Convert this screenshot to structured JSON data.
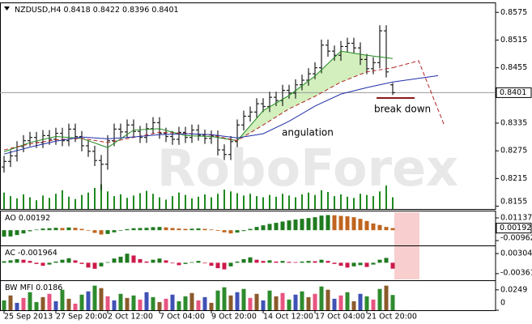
{
  "chart_data": [
    {
      "type": "ohlc",
      "title": "NZDUSD,H4",
      "watermark": "RoboForex",
      "color": "#1e1e1e",
      "value_box": true,
      "xlim": [
        -0.625,
        75.875
      ],
      "ylim": [
        0.8149,
        0.8593
      ],
      "yticks": [
        0.8575,
        0.8515,
        0.8455,
        0.8335,
        0.8275,
        0.8215,
        0.8155
      ],
      "open": [
        0.824,
        0.8252,
        0.8264,
        0.8284,
        0.8297,
        0.8304,
        0.8293,
        0.8308,
        0.83,
        0.8313,
        0.8297,
        0.8322,
        0.8306,
        0.8286,
        0.8274,
        0.8254,
        0.8246,
        0.8297,
        0.8322,
        0.8316,
        0.8331,
        0.8317,
        0.8304,
        0.8323,
        0.8336,
        0.8313,
        0.8306,
        0.83,
        0.8315,
        0.8304,
        0.832,
        0.8309,
        0.8302,
        0.8307,
        0.8277,
        0.8267,
        0.8295,
        0.8331,
        0.835,
        0.8359,
        0.8377,
        0.8371,
        0.8391,
        0.8384,
        0.8406,
        0.84,
        0.8418,
        0.8428,
        0.8442,
        0.8455,
        0.8504,
        0.8491,
        0.8482,
        0.8501,
        0.8508,
        0.8498,
        0.8473,
        0.8453,
        0.8466,
        0.8535,
        0.8418
      ],
      "high": [
        0.8264,
        0.8276,
        0.8296,
        0.8309,
        0.8316,
        0.8316,
        0.832,
        0.832,
        0.8325,
        0.8325,
        0.8334,
        0.8334,
        0.8318,
        0.8298,
        0.8286,
        0.8266,
        0.8309,
        0.8334,
        0.8334,
        0.8343,
        0.8343,
        0.8329,
        0.8335,
        0.8348,
        0.8348,
        0.8325,
        0.8318,
        0.8327,
        0.8327,
        0.8332,
        0.8332,
        0.8321,
        0.8319,
        0.8319,
        0.8289,
        0.8307,
        0.8343,
        0.8362,
        0.8371,
        0.8389,
        0.8389,
        0.8403,
        0.8403,
        0.8418,
        0.8418,
        0.843,
        0.844,
        0.8454,
        0.8467,
        0.8516,
        0.8516,
        0.8503,
        0.8513,
        0.852,
        0.852,
        0.851,
        0.8485,
        0.8478,
        0.8547,
        0.8547,
        0.8422
      ],
      "low": [
        0.8228,
        0.824,
        0.8252,
        0.8272,
        0.8285,
        0.8281,
        0.8281,
        0.8288,
        0.8288,
        0.8285,
        0.8285,
        0.8294,
        0.8274,
        0.8262,
        0.8242,
        0.819,
        0.8234,
        0.8285,
        0.8304,
        0.8304,
        0.8305,
        0.8292,
        0.8292,
        0.8311,
        0.8301,
        0.8294,
        0.8288,
        0.8288,
        0.8292,
        0.8292,
        0.8297,
        0.829,
        0.829,
        0.8265,
        0.8255,
        0.8255,
        0.8283,
        0.8319,
        0.8338,
        0.8347,
        0.8359,
        0.8359,
        0.8372,
        0.8372,
        0.8388,
        0.8388,
        0.8406,
        0.8416,
        0.843,
        0.8443,
        0.8479,
        0.847,
        0.847,
        0.8489,
        0.8486,
        0.8461,
        0.8441,
        0.8441,
        0.8454,
        0.8434,
        0.8396
      ],
      "close": [
        0.8252,
        0.8264,
        0.8284,
        0.8297,
        0.8304,
        0.8293,
        0.8308,
        0.83,
        0.8313,
        0.8297,
        0.8322,
        0.8306,
        0.8286,
        0.8274,
        0.8254,
        0.8246,
        0.8297,
        0.8322,
        0.8316,
        0.8331,
        0.8317,
        0.8304,
        0.8323,
        0.8336,
        0.8313,
        0.8306,
        0.83,
        0.8315,
        0.8304,
        0.832,
        0.8309,
        0.8302,
        0.8307,
        0.8277,
        0.8267,
        0.8295,
        0.8331,
        0.835,
        0.8359,
        0.8377,
        0.8371,
        0.8391,
        0.8384,
        0.8406,
        0.84,
        0.8418,
        0.8428,
        0.8442,
        0.8455,
        0.8504,
        0.8491,
        0.8482,
        0.8501,
        0.8508,
        0.8498,
        0.8473,
        0.8453,
        0.8466,
        0.8535,
        0.8446,
        0.8401
      ],
      "volume": [
        2800,
        2200,
        1800,
        2500,
        2000,
        1500,
        2300,
        1900,
        2600,
        3200,
        2100,
        1700,
        2400,
        2800,
        3600,
        4200,
        3000,
        2200,
        2500,
        1900,
        2300,
        2700,
        3100,
        2600,
        2000,
        1600,
        2200,
        2800,
        2400,
        1800,
        2100,
        2500,
        2000,
        2600,
        3300,
        3000,
        2700,
        2300,
        2600,
        2200,
        2000,
        2400,
        2100,
        2600,
        2300,
        2000,
        2500,
        2800,
        2400,
        3200,
        2900,
        2200,
        2500,
        2100,
        1900,
        2600,
        2400,
        2200,
        3000,
        4000,
        2000
      ],
      "volume_color": "#1f8a1f",
      "vlim": [
        0,
        35000
      ],
      "price_line_color": "#9a9a9a",
      "lines": [
        {
          "color": "#1f8a1f",
          "dash": false,
          "x": [
            0,
            4,
            8,
            12,
            16,
            20,
            24,
            28,
            32,
            36,
            40,
            44,
            48,
            52,
            56,
            60
          ],
          "values": [
            0.8273,
            0.8293,
            0.8306,
            0.8302,
            0.8282,
            0.832,
            0.8323,
            0.8308,
            0.8306,
            0.8297,
            0.8362,
            0.8395,
            0.8437,
            0.8491,
            0.8482,
            0.8475
          ]
        },
        {
          "color": "#b22222",
          "dash": true,
          "x": [
            0,
            4,
            8,
            12,
            16,
            20,
            24,
            28,
            32,
            36,
            40,
            44,
            48,
            52,
            56,
            60
          ],
          "values": [
            0.8277,
            0.829,
            0.8299,
            0.8302,
            0.8293,
            0.8304,
            0.8315,
            0.8313,
            0.8309,
            0.8297,
            0.8331,
            0.8366,
            0.8393,
            0.8424,
            0.8446,
            0.8455
          ]
        },
        {
          "color": "#1f2fa8",
          "dash": false,
          "x": [
            0,
            4,
            8,
            12,
            16,
            20,
            24,
            28,
            32,
            36,
            40,
            44,
            48,
            52,
            56,
            60,
            64,
            67
          ],
          "values": [
            0.8268,
            0.8283,
            0.8296,
            0.8305,
            0.8301,
            0.8305,
            0.831,
            0.8312,
            0.831,
            0.8303,
            0.8312,
            0.8339,
            0.8372,
            0.8398,
            0.8412,
            0.8424,
            0.8432,
            0.8438
          ]
        },
        {
          "color": "#b22222",
          "dash": true,
          "x": [
            60,
            64,
            68
          ],
          "values": [
            0.8455,
            0.847,
            0.8329
          ]
        }
      ],
      "annotations": [
        {
          "text": "angulation",
          "color": "#2e8b57",
          "fill": "#d3efbd"
        },
        {
          "text": "break down",
          "color": "#b22222"
        }
      ]
    },
    {
      "type": "bar",
      "name": "AO",
      "value_box": true,
      "xlim": [
        -0.625,
        75.875
      ],
      "ylim": [
        -0.0141,
        0.0166
      ],
      "yticks": [
        0.01137,
        -0.00962
      ],
      "up_color": "#1f7a1f",
      "down_color": "#c0641e",
      "values": [
        -0.006,
        -0.0058,
        -0.0045,
        -0.003,
        -0.001,
        0.0005,
        0.0015,
        0.0018,
        0.0022,
        0.002,
        0.0025,
        0.0022,
        0.0012,
        -0.0005,
        -0.0025,
        -0.004,
        -0.0035,
        -0.002,
        -0.0005,
        0.001,
        0.0018,
        0.002,
        0.0022,
        0.0028,
        0.003,
        0.0026,
        0.002,
        0.0015,
        0.0012,
        0.0014,
        0.0016,
        0.0012,
        0.0006,
        -0.0006,
        -0.002,
        -0.003,
        -0.0022,
        -0.0008,
        0.0012,
        0.003,
        0.0045,
        0.0058,
        0.0068,
        0.008,
        0.009,
        0.0098,
        0.0105,
        0.0112,
        0.012,
        0.0135,
        0.014,
        0.0138,
        0.0132,
        0.0128,
        0.012,
        0.0105,
        0.0085,
        0.0062,
        0.0048,
        0.003,
        0.00192
      ]
    },
    {
      "type": "bar",
      "name": "AC",
      "value_box": false,
      "xlim": [
        -0.625,
        75.875
      ],
      "ylim": [
        -0.0058,
        0.0052
      ],
      "yticks": [
        0.003042,
        -0.00361
      ],
      "up_color": "#1f7a1f",
      "down_color": "#cc1a4a",
      "values": [
        0.0005,
        0.0008,
        0.0012,
        0.001,
        0.0006,
        -0.0004,
        -0.001,
        -0.0006,
        0.0004,
        0.001,
        0.0015,
        0.0008,
        -0.0004,
        -0.0016,
        -0.002,
        -0.0012,
        0.0002,
        0.0014,
        0.002,
        0.003,
        0.0024,
        0.0012,
        0.0004,
        0.001,
        0.0014,
        0.0008,
        -0.0002,
        -0.0008,
        -0.0004,
        0.0002,
        0.0006,
        -0.0002,
        -0.001,
        -0.0018,
        -0.0022,
        -0.0012,
        0.0004,
        0.0012,
        0.0018,
        0.001,
        0.0006,
        0.0008,
        0.0004,
        0.0006,
        0.0003,
        0.0002,
        0.0004,
        0.0006,
        0.0005,
        0.001,
        0.0006,
        -0.0004,
        -0.001,
        -0.0016,
        -0.0012,
        -0.0008,
        -0.0014,
        -0.0006,
        0.001,
        0.0016,
        -0.001964
      ]
    },
    {
      "type": "bar",
      "name": "BW MFI",
      "value_box": false,
      "xlim": [
        -0.625,
        75.875
      ],
      "ylim": [
        0,
        0.0346
      ],
      "yticks": [
        0.0249,
        0
      ],
      "values": [
        0.012,
        0.018,
        0.009,
        0.015,
        0.022,
        0.01,
        0.016,
        0.02,
        0.011,
        0.025,
        0.014,
        0.008,
        0.019,
        0.023,
        0.03,
        0.027,
        0.017,
        0.012,
        0.02,
        0.015,
        0.018,
        0.013,
        0.022,
        0.016,
        0.01,
        0.014,
        0.019,
        0.011,
        0.017,
        0.021,
        0.012,
        0.016,
        0.009,
        0.024,
        0.028,
        0.018,
        0.022,
        0.026,
        0.015,
        0.02,
        0.012,
        0.024,
        0.017,
        0.021,
        0.013,
        0.019,
        0.023,
        0.016,
        0.02,
        0.029,
        0.025,
        0.014,
        0.018,
        0.022,
        0.011,
        0.02,
        0.017,
        0.013,
        0.026,
        0.03,
        0.0186
      ],
      "colors": [
        "#2e8b2e",
        "#8b5a2b",
        "#3f51b5",
        "#e75480",
        "#2e8b2e",
        "#2e8b2e",
        "#8b5a2b",
        "#e75480",
        "#3f51b5",
        "#2e8b2e",
        "#8b5a2b",
        "#e75480",
        "#2e8b2e",
        "#3f51b5",
        "#2e8b2e",
        "#8b5a2b",
        "#e75480",
        "#3f51b5",
        "#2e8b2e",
        "#8b5a2b",
        "#2e8b2e",
        "#e75480",
        "#3f51b5",
        "#2e8b2e",
        "#8b5a2b",
        "#e75480",
        "#3f51b5",
        "#2e8b2e",
        "#2e8b2e",
        "#8b5a2b",
        "#e75480",
        "#3f51b5",
        "#8b5a2b",
        "#2e8b2e",
        "#2e8b2e",
        "#8b5a2b",
        "#3f51b5",
        "#2e8b2e",
        "#e75480",
        "#8b5a2b",
        "#3f51b5",
        "#2e8b2e",
        "#8b5a2b",
        "#e75480",
        "#2e8b2e",
        "#3f51b5",
        "#2e8b2e",
        "#8b5a2b",
        "#e75480",
        "#2e8b2e",
        "#8b5a2b",
        "#3f51b5",
        "#e75480",
        "#2e8b2e",
        "#8b5a2b",
        "#3f51b5",
        "#2e8b2e",
        "#e75480",
        "#2e8b2e",
        "#8b5a2b",
        "#2e8b2e"
      ],
      "xticks": [
        {
          "value": 0,
          "label": "25 Sep 2013"
        },
        {
          "value": 8,
          "label": "27 Sep 20:00"
        },
        {
          "value": 16,
          "label": "2 Oct 12:00"
        },
        {
          "value": 24,
          "label": "7 Oct 04:00"
        },
        {
          "value": 32,
          "label": "9 Oct 20:00"
        },
        {
          "value": 40,
          "label": "14 Oct 12:00"
        },
        {
          "value": 48,
          "label": "17 Oct 04:00"
        },
        {
          "value": 56,
          "label": "21 Oct 20:00"
        }
      ]
    }
  ]
}
